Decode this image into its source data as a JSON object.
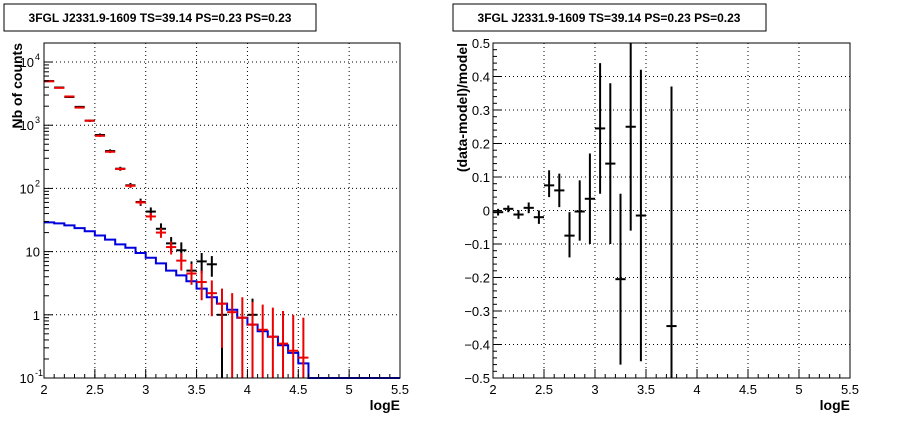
{
  "chart_data": [
    {
      "type": "scatter",
      "title": "3FGL J2331.9-1609 TS=39.14 PS=0.23 PS=0.23",
      "xlabel": "logE",
      "ylabel": "Nb of counts",
      "xlim": [
        2,
        5.5
      ],
      "ylim": [
        0.1,
        20000
      ],
      "yscale": "log",
      "grid": true,
      "x_ticks": [
        "2",
        "2.5",
        "3",
        "3.5",
        "4",
        "4.5",
        "5",
        "5.5"
      ],
      "y_ticks": [
        {
          "value": 0.1,
          "label": "10",
          "exp": "-1"
        },
        {
          "value": 1,
          "label": "1",
          "exp": ""
        },
        {
          "value": 10,
          "label": "10",
          "exp": ""
        },
        {
          "value": 100,
          "label": "10",
          "exp": "2"
        },
        {
          "value": 1000,
          "label": "10",
          "exp": "3"
        },
        {
          "value": 10000,
          "label": "10",
          "exp": "4"
        }
      ],
      "colors": {
        "data": "#000000",
        "model": "#ee0000",
        "background": "#0000dd"
      },
      "series": [
        {
          "role": "data",
          "points": [
            {
              "x": 2.05,
              "y": 5000,
              "lo": 4900,
              "hi": 5100
            },
            {
              "x": 2.15,
              "y": 3950,
              "lo": 3850,
              "hi": 4050
            },
            {
              "x": 2.25,
              "y": 2800,
              "lo": 2700,
              "hi": 2900
            },
            {
              "x": 2.35,
              "y": 1950,
              "lo": 1880,
              "hi": 2020
            },
            {
              "x": 2.45,
              "y": 1180,
              "lo": 1130,
              "hi": 1230
            },
            {
              "x": 2.55,
              "y": 700,
              "lo": 660,
              "hi": 740
            },
            {
              "x": 2.65,
              "y": 390,
              "lo": 365,
              "hi": 415
            },
            {
              "x": 2.75,
              "y": 205,
              "lo": 190,
              "hi": 220
            },
            {
              "x": 2.85,
              "y": 112,
              "lo": 102,
              "hi": 122
            },
            {
              "x": 2.95,
              "y": 61,
              "lo": 53,
              "hi": 69
            },
            {
              "x": 3.05,
              "y": 43,
              "lo": 36,
              "hi": 50
            },
            {
              "x": 3.15,
              "y": 23,
              "lo": 18,
              "hi": 28
            },
            {
              "x": 3.25,
              "y": 13.5,
              "lo": 10,
              "hi": 17
            },
            {
              "x": 3.35,
              "y": 10.5,
              "lo": 7.5,
              "hi": 14
            },
            {
              "x": 3.45,
              "y": 5,
              "lo": 3,
              "hi": 7
            },
            {
              "x": 3.55,
              "y": 7,
              "lo": 4.5,
              "hi": 9.5
            },
            {
              "x": 3.65,
              "y": 6.3,
              "lo": 4,
              "hi": 8.5
            },
            {
              "x": 3.75,
              "y": 1,
              "lo": 0.1,
              "hi": 2.2
            },
            {
              "x": 4.05,
              "y": 1,
              "lo": 0.1,
              "hi": 1.8
            }
          ]
        },
        {
          "role": "model",
          "points": [
            {
              "x": 2.05,
              "y": 4950,
              "lo": 4850,
              "hi": 5050
            },
            {
              "x": 2.15,
              "y": 3900,
              "lo": 3810,
              "hi": 3990
            },
            {
              "x": 2.25,
              "y": 2850,
              "lo": 2780,
              "hi": 2920
            },
            {
              "x": 2.35,
              "y": 1900,
              "lo": 1850,
              "hi": 1950
            },
            {
              "x": 2.45,
              "y": 1180,
              "lo": 1140,
              "hi": 1220
            },
            {
              "x": 2.55,
              "y": 680,
              "lo": 655,
              "hi": 705
            },
            {
              "x": 2.65,
              "y": 380,
              "lo": 362,
              "hi": 398
            },
            {
              "x": 2.75,
              "y": 203,
              "lo": 192,
              "hi": 214
            },
            {
              "x": 2.85,
              "y": 110,
              "lo": 103,
              "hi": 117
            },
            {
              "x": 2.95,
              "y": 60,
              "lo": 55,
              "hi": 65
            },
            {
              "x": 3.05,
              "y": 36,
              "lo": 31,
              "hi": 41
            },
            {
              "x": 3.15,
              "y": 20,
              "lo": 16.5,
              "hi": 23.5
            },
            {
              "x": 3.25,
              "y": 11.8,
              "lo": 9,
              "hi": 14.5
            },
            {
              "x": 3.35,
              "y": 7.2,
              "lo": 5,
              "hi": 9.5
            },
            {
              "x": 3.45,
              "y": 4.5,
              "lo": 3,
              "hi": 6.4
            },
            {
              "x": 3.55,
              "y": 3.3,
              "lo": 1.7,
              "hi": 5
            },
            {
              "x": 3.65,
              "y": 2.2,
              "lo": 0.95,
              "hi": 3.5
            },
            {
              "x": 3.75,
              "y": 1.5,
              "lo": 0.3,
              "hi": 2.6
            },
            {
              "x": 3.85,
              "y": 1.1,
              "lo": 0.1,
              "hi": 2.2
            },
            {
              "x": 3.95,
              "y": 0.9,
              "lo": 0.1,
              "hi": 1.9
            },
            {
              "x": 4.05,
              "y": 0.7,
              "lo": 0.1,
              "hi": 1.6
            },
            {
              "x": 4.15,
              "y": 0.58,
              "lo": 0.1,
              "hi": 1.45
            },
            {
              "x": 4.25,
              "y": 0.45,
              "lo": 0.1,
              "hi": 1.3
            },
            {
              "x": 4.35,
              "y": 0.35,
              "lo": 0.1,
              "hi": 1.15
            },
            {
              "x": 4.45,
              "y": 0.27,
              "lo": 0.1,
              "hi": 1
            },
            {
              "x": 4.55,
              "y": 0.21,
              "lo": 0.1,
              "hi": 0.9
            }
          ]
        },
        {
          "role": "background",
          "step": true,
          "edges": [
            2,
            2.1,
            2.2,
            2.3,
            2.4,
            2.5,
            2.6,
            2.7,
            2.8,
            2.9,
            3.0,
            3.1,
            3.2,
            3.3,
            3.4,
            3.5,
            3.6,
            3.7,
            3.8,
            3.9,
            4.0,
            4.1,
            4.2,
            4.3,
            4.4,
            4.5,
            4.6,
            5.5
          ],
          "values": [
            29,
            28,
            26,
            23.5,
            21,
            18,
            15.5,
            13,
            11.5,
            9.5,
            8,
            6.5,
            5,
            4.2,
            3.4,
            2.6,
            1.9,
            1.5,
            1.2,
            0.9,
            0.7,
            0.55,
            0.45,
            0.33,
            0.25,
            0.17,
            0.1
          ]
        }
      ]
    },
    {
      "type": "scatter",
      "title": "3FGL J2331.9-1609 TS=39.14 PS=0.23 PS=0.23",
      "xlabel": "logE",
      "ylabel": "(data-model)/model",
      "xlim": [
        2,
        5.5
      ],
      "ylim": [
        -0.5,
        0.5
      ],
      "yscale": "linear",
      "grid": true,
      "x_ticks": [
        "2",
        "2.5",
        "3",
        "3.5",
        "4",
        "4.5",
        "5",
        "5.5"
      ],
      "y_ticks": [
        "−0.5",
        "−0.4",
        "−0.3",
        "−0.2",
        "−0.1",
        "0",
        "0.1",
        "0.2",
        "0.3",
        "0.4",
        "0.5"
      ],
      "colors": {
        "data": "#000000"
      },
      "series": [
        {
          "role": "residual",
          "points": [
            {
              "x": 2.05,
              "y": -0.005,
              "lo": -0.015,
              "hi": 0.005
            },
            {
              "x": 2.15,
              "y": 0.005,
              "lo": -0.005,
              "hi": 0.015
            },
            {
              "x": 2.25,
              "y": -0.012,
              "lo": -0.025,
              "hi": 0.001
            },
            {
              "x": 2.35,
              "y": 0.008,
              "lo": -0.008,
              "hi": 0.024
            },
            {
              "x": 2.45,
              "y": -0.02,
              "lo": -0.04,
              "hi": 0.0
            },
            {
              "x": 2.55,
              "y": 0.075,
              "lo": 0.04,
              "hi": 0.12
            },
            {
              "x": 2.65,
              "y": 0.06,
              "lo": 0.01,
              "hi": 0.11
            },
            {
              "x": 2.75,
              "y": -0.075,
              "lo": -0.14,
              "hi": -0.005
            },
            {
              "x": 2.85,
              "y": -0.003,
              "lo": -0.09,
              "hi": 0.09
            },
            {
              "x": 2.95,
              "y": 0.035,
              "lo": -0.1,
              "hi": 0.17
            },
            {
              "x": 3.05,
              "y": 0.245,
              "lo": 0.05,
              "hi": 0.44
            },
            {
              "x": 3.15,
              "y": 0.14,
              "lo": -0.1,
              "hi": 0.38
            },
            {
              "x": 3.25,
              "y": -0.205,
              "lo": -0.46,
              "hi": 0.05
            },
            {
              "x": 3.35,
              "y": 0.25,
              "lo": -0.06,
              "hi": 0.5
            },
            {
              "x": 3.45,
              "y": -0.015,
              "lo": -0.45,
              "hi": 0.42
            },
            {
              "x": 3.75,
              "y": -0.345,
              "lo": -0.5,
              "hi": 0.37
            }
          ]
        }
      ]
    }
  ]
}
